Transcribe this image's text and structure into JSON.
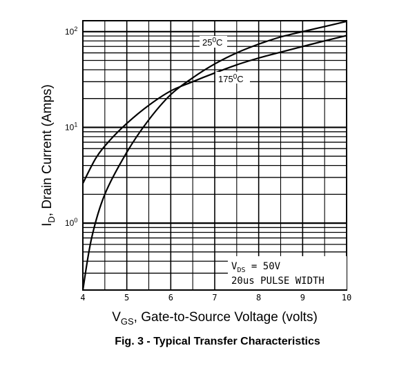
{
  "chart_data": {
    "type": "line",
    "title": "",
    "caption": "Fig. 3 - Typical Transfer Characteristics",
    "xlabel_main": "V",
    "xlabel_sub": "GS",
    "xlabel_rest": ", Gate-to-Source Voltage (volts)",
    "ylabel_main": "I",
    "ylabel_sub": "D",
    "ylabel_rest": ", Drain Current (Amps)",
    "xlim": [
      4,
      10
    ],
    "ylim": [
      0.2,
      130
    ],
    "yscale": "log",
    "grid": true,
    "x_ticks": [
      "4",
      "5",
      "6",
      "7",
      "8",
      "9",
      "10"
    ],
    "y_ticks": [
      {
        "base": "10",
        "exp": "0",
        "value": 1
      },
      {
        "base": "10",
        "exp": "1",
        "value": 10
      },
      {
        "base": "10",
        "exp": "2",
        "value": 100
      }
    ],
    "series": [
      {
        "name": "25°C",
        "label_base": "25",
        "label_sup": "0",
        "label_unit": "C",
        "x": [
          4.0,
          4.2,
          4.5,
          5.0,
          5.5,
          6.0,
          6.5,
          7.0,
          7.5,
          8.0,
          8.5,
          9.0,
          9.5,
          10.0
        ],
        "y": [
          0.2,
          0.7,
          2.0,
          5.5,
          12.0,
          22.0,
          33.0,
          46.0,
          60.0,
          74.0,
          88.0,
          100.0,
          113.0,
          128.0
        ]
      },
      {
        "name": "175°C",
        "label_base": "175",
        "label_sup": "0",
        "label_unit": "C",
        "x": [
          4.0,
          4.3,
          4.6,
          5.0,
          5.5,
          6.0,
          6.5,
          7.0,
          7.5,
          8.0,
          8.5,
          9.0,
          9.5,
          10.0
        ],
        "y": [
          2.6,
          4.8,
          7.2,
          11.0,
          17.0,
          24.0,
          30.0,
          37.0,
          45.0,
          53.0,
          61.0,
          70.0,
          80.0,
          91.0
        ]
      }
    ],
    "annotation_line1_main": "V",
    "annotation_line1_sub": "DS",
    "annotation_line1_rest": " = 50V",
    "annotation_line2": "20us PULSE WIDTH"
  }
}
